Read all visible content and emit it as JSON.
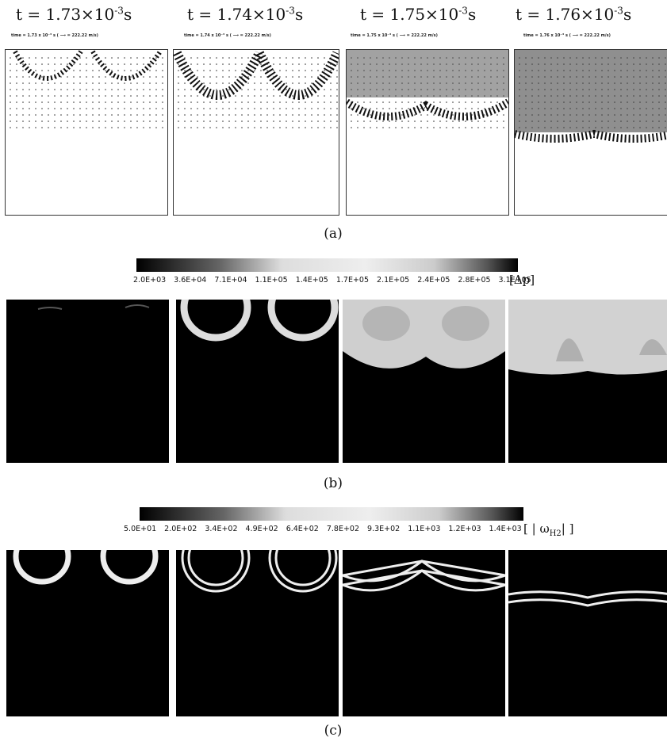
{
  "panel_a": {
    "times": [
      {
        "t": "t = 1.73×10",
        "exp": "-3",
        "unit": "s",
        "mini": "time = 1.73 x 10⁻³ s (  ⟶  = 222.22 m/s)"
      },
      {
        "t": "t = 1.74×10",
        "exp": "-3",
        "unit": "s",
        "mini": "time = 1.74 x 10⁻³ s (  ⟶  = 222.22 m/s)"
      },
      {
        "t": "t = 1.75×10",
        "exp": "-3",
        "unit": "s",
        "mini": "time = 1.75 x 10⁻³ s (  ⟶  = 222.22 m/s)"
      },
      {
        "t": "t = 1.76×10",
        "exp": "-3",
        "unit": "s",
        "mini": "time = 1.76 x 10⁻³ s (  ⟶  = 222.22 m/s)"
      }
    ],
    "caption": "(a)"
  },
  "panel_b": {
    "ticks": [
      "2.0E+03",
      "3.6E+04",
      "7.1E+04",
      "1.1E+05",
      "1.4E+05",
      "1.7E+05",
      "2.1E+05",
      "2.4E+05",
      "2.8E+05",
      "3.1E+05"
    ],
    "unit": "[Δp]",
    "caption": "(b)"
  },
  "panel_c": {
    "ticks": [
      "5.0E+01",
      "2.0E+02",
      "3.4E+02",
      "4.9E+02",
      "6.4E+02",
      "7.8E+02",
      "9.3E+02",
      "1.1E+03",
      "1.2E+03",
      "1.4E+03"
    ],
    "unit_prefix": "[ | ω",
    "unit_sub": "H2",
    "unit_suffix": "| ]",
    "caption": "(c)"
  }
}
